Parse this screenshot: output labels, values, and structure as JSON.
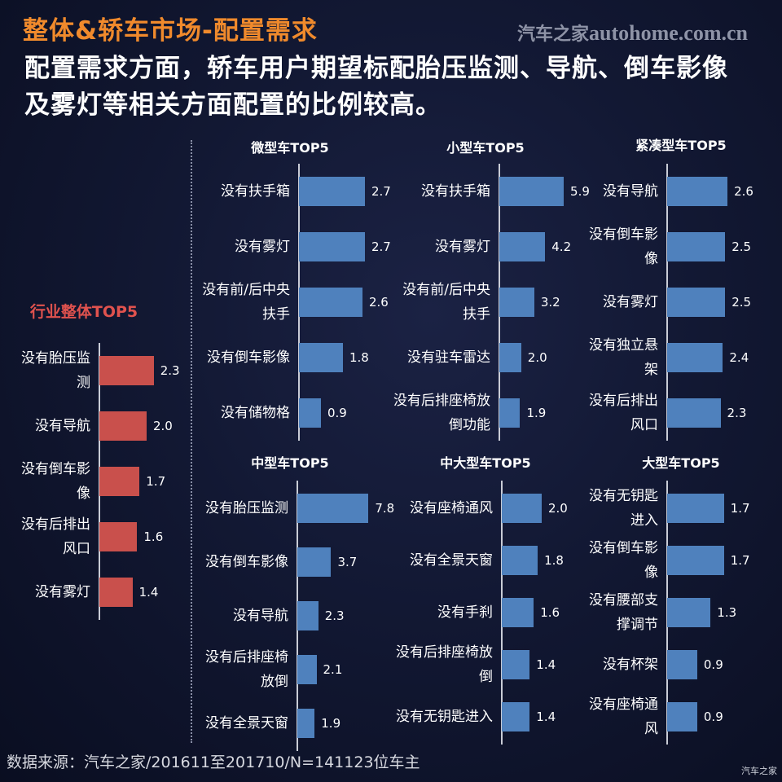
{
  "header": {
    "title": "整体&轿车市场-配置需求",
    "watermark_cn": "汽车之家",
    "watermark_en": "autohome.com.cn",
    "subtitle": "配置需求方面，轿车用户期望标配胎压监测、导航、倒车影像及雾灯等相关方面配置的比例较高。"
  },
  "footer": {
    "source": "数据来源：汽车之家/201611至201710/N=141123位车主",
    "corner": "汽车之家"
  },
  "colors": {
    "overall": "#c9504c",
    "segment": "#4f81bd"
  },
  "chart_data": [
    {
      "id": "overall",
      "type": "bar",
      "orientation": "horizontal",
      "title": "行业整体TOP5",
      "categories": [
        "没有胎压监测",
        "没有导航",
        "没有倒车影像",
        "没有后排出风口",
        "没有雾灯"
      ],
      "values": [
        2.3,
        2.0,
        1.7,
        1.6,
        1.4
      ]
    },
    {
      "id": "mini",
      "type": "bar",
      "orientation": "horizontal",
      "title": "微型车TOP5",
      "categories": [
        "没有扶手箱",
        "没有雾灯",
        "没有前/后中央扶手",
        "没有倒车影像",
        "没有储物格"
      ],
      "values": [
        2.7,
        2.7,
        2.6,
        1.8,
        0.9
      ]
    },
    {
      "id": "small",
      "type": "bar",
      "orientation": "horizontal",
      "title": "小型车TOP5",
      "categories": [
        "没有扶手箱",
        "没有雾灯",
        "没有前/后中央扶手",
        "没有驻车雷达",
        "没有后排座椅放倒功能"
      ],
      "values": [
        5.9,
        4.2,
        3.2,
        2.0,
        1.9
      ]
    },
    {
      "id": "compact",
      "type": "bar",
      "orientation": "horizontal",
      "title": "紧凑型车TOP5",
      "categories": [
        "没有导航",
        "没有倒车影像",
        "没有雾灯",
        "没有独立悬架",
        "没有后排出风口"
      ],
      "values": [
        2.6,
        2.5,
        2.5,
        2.4,
        2.3
      ]
    },
    {
      "id": "mid",
      "type": "bar",
      "orientation": "horizontal",
      "title": "中型车TOP5",
      "categories": [
        "没有胎压监测",
        "没有倒车影像",
        "没有导航",
        "没有后排座椅放倒",
        "没有全景天窗"
      ],
      "values": [
        7.8,
        3.7,
        2.3,
        2.1,
        1.9
      ]
    },
    {
      "id": "midlarge",
      "type": "bar",
      "orientation": "horizontal",
      "title": "中大型车TOP5",
      "categories": [
        "没有座椅通风",
        "没有全景天窗",
        "没有手刹",
        "没有后排座椅放倒",
        "没有无钥匙进入"
      ],
      "values": [
        2.0,
        1.8,
        1.6,
        1.4,
        1.4
      ]
    },
    {
      "id": "large",
      "type": "bar",
      "orientation": "horizontal",
      "title": "大型车TOP5",
      "categories": [
        "没有无钥匙进入",
        "没有倒车影像",
        "没有腰部支撑调节",
        "没有杯架",
        "没有座椅通风"
      ],
      "values": [
        1.7,
        1.7,
        1.3,
        0.9,
        0.9
      ]
    }
  ]
}
